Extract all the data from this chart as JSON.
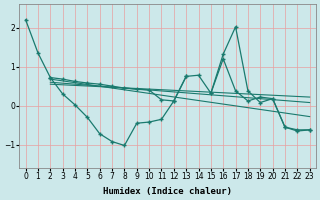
{
  "background_color": "#cce8ea",
  "grid_color_major": "#e8a0a0",
  "line_color": "#1a7a6e",
  "xlabel": "Humidex (Indice chaleur)",
  "xlim": [
    -0.5,
    23.5
  ],
  "ylim": [
    -1.6,
    2.6
  ],
  "yticks": [
    -1,
    0,
    1,
    2
  ],
  "xticks": [
    0,
    1,
    2,
    3,
    4,
    5,
    6,
    7,
    8,
    9,
    10,
    11,
    12,
    13,
    14,
    15,
    16,
    17,
    18,
    19,
    20,
    21,
    22,
    23
  ],
  "line1_x": [
    0,
    1,
    2,
    3,
    4,
    5,
    6,
    7,
    8,
    9,
    10,
    11,
    12,
    13,
    14,
    15,
    16,
    17,
    18,
    19,
    20,
    21,
    22,
    23
  ],
  "line1_y": [
    2.2,
    1.35,
    0.72,
    0.68,
    0.62,
    0.58,
    0.55,
    0.5,
    0.45,
    0.42,
    0.4,
    0.15,
    0.12,
    0.75,
    0.78,
    0.32,
    1.2,
    0.38,
    0.12,
    0.22,
    0.18,
    -0.55,
    -0.62,
    -0.62
  ],
  "line2_x": [
    2,
    3,
    4,
    5,
    6,
    7,
    8,
    9,
    10,
    11,
    12,
    13
  ],
  "line2_y": [
    0.72,
    0.3,
    0.02,
    -0.3,
    -0.72,
    -0.92,
    -1.02,
    -0.45,
    -0.42,
    -0.35,
    0.12,
    0.75
  ],
  "line3_x": [
    15,
    16,
    17,
    18,
    19,
    20,
    21,
    22,
    23
  ],
  "line3_y": [
    0.32,
    1.32,
    2.02,
    0.38,
    0.08,
    0.18,
    -0.55,
    -0.65,
    -0.62
  ],
  "trend1_x": [
    2,
    23
  ],
  "trend1_y": [
    0.68,
    -0.28
  ],
  "trend2_x": [
    2,
    23
  ],
  "trend2_y": [
    0.6,
    0.08
  ],
  "trend3_x": [
    2,
    23
  ],
  "trend3_y": [
    0.55,
    0.22
  ]
}
